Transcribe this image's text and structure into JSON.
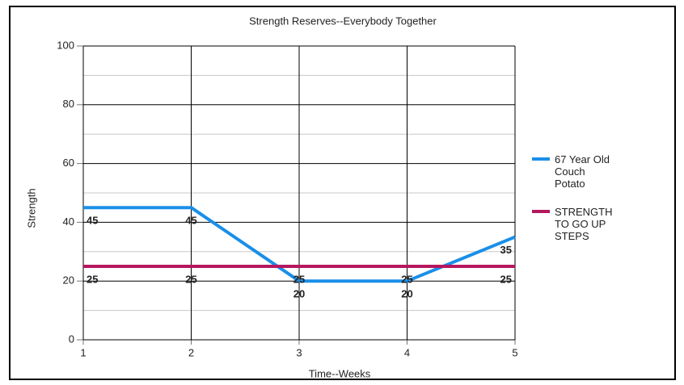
{
  "chart_data": {
    "type": "line",
    "title": "Strength Reserves--Everybody Together",
    "x_label": "Time--Weeks",
    "y_label": "Strength",
    "x": [
      1,
      2,
      3,
      4,
      5
    ],
    "series": [
      {
        "name": "67 Year Old Couch Potato",
        "color": "#1a8fe8",
        "values": [
          45,
          45,
          20,
          20,
          35
        ]
      },
      {
        "name": "STRENGTH TO GO UP STEPS",
        "color": "#b5175e",
        "values": [
          25,
          25,
          25,
          25,
          25
        ]
      }
    ],
    "xlim": [
      1,
      5
    ],
    "xticks": [
      1,
      2,
      3,
      4,
      5
    ],
    "ylim": [
      0,
      100
    ],
    "yticks": [
      0,
      20,
      40,
      60,
      80,
      100
    ],
    "y_minor_ticks": [
      10,
      30,
      50,
      70,
      90
    ],
    "grid": true,
    "data_labels": true,
    "legend": "right"
  }
}
